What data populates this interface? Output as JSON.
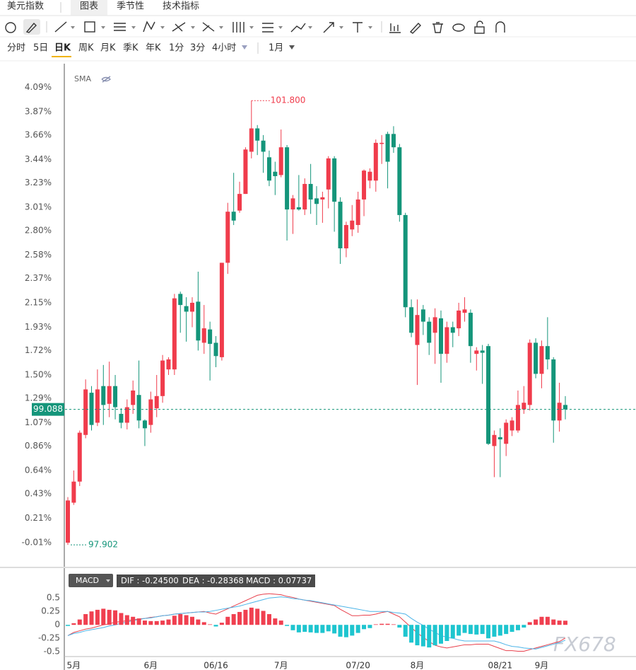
{
  "tabs": {
    "title": "美元指数",
    "items": [
      "图表",
      "季节性",
      "技术指标"
    ]
  },
  "periods": [
    "分时",
    "5日",
    "日K",
    "周K",
    "月K",
    "季K",
    "年K",
    "1分",
    "3分",
    "4小时"
  ],
  "active_period": 2,
  "range": "1月",
  "watermark": "FX678",
  "chart_data": [
    {
      "type": "candlestick",
      "indicator": "SMA",
      "categories": [
        null,
        "5月",
        null,
        null,
        null,
        null,
        null,
        null,
        null,
        null,
        null,
        null,
        null,
        null,
        "6月",
        null,
        null,
        null,
        null,
        null,
        null,
        null,
        null,
        null,
        null,
        "06/16",
        null,
        null,
        null,
        null,
        null,
        null,
        null,
        null,
        null,
        null,
        "7月",
        null,
        null,
        null,
        null,
        null,
        null,
        null,
        null,
        null,
        null,
        null,
        null,
        "07/20",
        null,
        null,
        null,
        null,
        null,
        null,
        null,
        null,
        null,
        "8月",
        null,
        null,
        null,
        null,
        null,
        null,
        null,
        null,
        null,
        null,
        null,
        null,
        null,
        "08/21",
        null,
        null,
        null,
        null,
        null,
        null,
        "9月",
        null,
        null,
        null,
        null
      ],
      "open": [
        -0.01,
        0.35,
        0.54,
        0.96,
        1.34,
        1.07,
        1.4,
        1.24,
        1.4,
        1.15,
        1.07,
        1.23,
        1.32,
        1.09,
        1.05,
        1.2,
        1.31,
        1.55,
        1.55,
        2.23,
        2.12,
        2.07,
        2.16,
        1.79,
        1.91,
        1.79,
        1.66,
        2.51,
        2.97,
        2.98,
        3.13,
        3.51,
        3.72,
        3.61,
        3.46,
        3.33,
        3.3,
        3.55,
        2.99,
        3.01,
        2.99,
        3.22,
        3.09,
        3.08,
        3.17,
        3.45,
        3.06,
        2.64,
        2.81,
        2.85,
        3.08,
        3.25,
        3.25,
        3.58,
        3.67,
        3.67,
        3.55,
        2.94,
        2.11,
        1.77,
        2.09,
        1.98,
        1.88,
        2.01,
        1.69,
        1.93,
        1.92,
        2.06,
        2.06,
        1.69,
        1.72,
        1.76,
        0.86,
        0.94,
        0.88,
        1.0,
        1.0,
        1.19,
        1.23,
        1.79,
        1.51,
        1.76,
        1.64,
        1.09,
        1.23
      ],
      "high": [
        0.4,
        0.64,
        1.0,
        1.46,
        1.4,
        1.55,
        1.59,
        1.62,
        1.5,
        1.2,
        1.28,
        1.45,
        1.63,
        1.1,
        1.35,
        1.5,
        1.68,
        1.66,
        2.23,
        2.25,
        2.2,
        2.2,
        2.43,
        2.13,
        1.98,
        1.85,
        2.51,
        3.05,
        3.32,
        3.24,
        3.55,
        3.97,
        3.75,
        3.66,
        3.52,
        3.42,
        3.71,
        3.57,
        3.12,
        3.3,
        3.27,
        3.4,
        3.2,
        3.15,
        3.47,
        3.47,
        3.1,
        2.88,
        3.03,
        3.15,
        3.35,
        3.36,
        3.62,
        3.66,
        3.69,
        3.74,
        3.58,
        2.96,
        2.18,
        2.18,
        2.13,
        2.02,
        2.1,
        2.08,
        1.98,
        1.98,
        2.15,
        2.2,
        2.09,
        1.75,
        1.77,
        1.78,
        1.0,
        1.02,
        1.1,
        1.12,
        1.36,
        1.4,
        1.82,
        1.83,
        1.81,
        2.02,
        1.66,
        1.43,
        1.31
      ],
      "low": [
        -0.03,
        0.33,
        0.5,
        0.93,
        1.0,
        1.04,
        1.05,
        1.12,
        1.1,
        1.02,
        1.01,
        1.15,
        1.02,
        0.86,
        0.98,
        1.12,
        1.25,
        1.5,
        1.5,
        1.88,
        1.8,
        1.93,
        1.72,
        1.69,
        1.45,
        1.57,
        1.63,
        2.41,
        2.85,
        2.96,
        3.13,
        3.45,
        3.48,
        3.32,
        3.2,
        3.12,
        3.28,
        2.71,
        2.77,
        2.98,
        2.94,
        2.95,
        2.85,
        2.87,
        3.0,
        2.79,
        2.5,
        2.56,
        2.75,
        2.78,
        2.93,
        3.18,
        3.15,
        3.4,
        3.18,
        3.5,
        2.88,
        2.02,
        1.84,
        1.41,
        1.86,
        1.68,
        1.6,
        1.43,
        1.61,
        1.75,
        1.85,
        1.98,
        1.61,
        1.54,
        1.42,
        0.87,
        0.58,
        0.58,
        0.77,
        0.95,
        0.98,
        1.15,
        1.18,
        1.47,
        1.38,
        1.55,
        0.89,
        0.99,
        1.1
      ],
      "close": [
        0.37,
        0.54,
        0.98,
        1.37,
        1.05,
        1.37,
        1.23,
        1.4,
        1.21,
        1.07,
        1.21,
        1.36,
        1.09,
        1.02,
        1.28,
        1.31,
        1.63,
        1.64,
        2.19,
        2.13,
        2.07,
        2.15,
        1.81,
        1.92,
        1.78,
        1.67,
        2.51,
        2.97,
        2.89,
        3.13,
        3.53,
        3.72,
        3.61,
        3.51,
        3.25,
        3.29,
        3.55,
        2.99,
        3.09,
        2.99,
        3.22,
        3.08,
        3.04,
        3.1,
        3.45,
        3.06,
        2.64,
        2.85,
        2.89,
        3.08,
        3.34,
        3.33,
        3.59,
        3.59,
        3.42,
        3.55,
        2.94,
        2.11,
        1.88,
        2.04,
        1.98,
        1.79,
        2.02,
        1.69,
        1.93,
        1.88,
        2.08,
        2.09,
        1.76,
        1.72,
        1.7,
        0.88,
        0.96,
        0.92,
        1.07,
        1.09,
        1.23,
        1.25,
        1.79,
        1.51,
        1.76,
        1.64,
        1.09,
        1.25,
        1.19
      ],
      "up_color": "#f03c4c",
      "down_color": "#14957a",
      "ylim": [
        -0.22,
        4.29
      ],
      "yticks": [
        {
          "value": 4.09,
          "label": "4.09%"
        },
        {
          "value": 3.87,
          "label": "3.87%"
        },
        {
          "value": 3.66,
          "label": "3.66%"
        },
        {
          "value": 3.44,
          "label": "3.44%"
        },
        {
          "value": 3.23,
          "label": "3.23%"
        },
        {
          "value": 3.01,
          "label": "3.01%"
        },
        {
          "value": 2.8,
          "label": "2.80%"
        },
        {
          "value": 2.58,
          "label": "2.58%"
        },
        {
          "value": 2.37,
          "label": "2.37%"
        },
        {
          "value": 2.15,
          "label": "2.15%"
        },
        {
          "value": 1.93,
          "label": "1.93%"
        },
        {
          "value": 1.72,
          "label": "1.72%"
        },
        {
          "value": 1.5,
          "label": "1.50%"
        },
        {
          "value": 1.29,
          "label": "1.29%"
        },
        {
          "value": 1.07,
          "label": "1.07%"
        },
        {
          "value": 0.86,
          "label": "0.86%"
        },
        {
          "value": 0.64,
          "label": "0.64%"
        },
        {
          "value": 0.43,
          "label": "0.43%"
        },
        {
          "value": 0.21,
          "label": "0.21%"
        },
        {
          "value": -0.01,
          "label": "-0.01%"
        }
      ],
      "high_label": {
        "value": 101.8,
        "label": "101.800"
      },
      "low_label": {
        "value": 97.902,
        "label": "97.902"
      },
      "last_price": {
        "value": 99.088,
        "label": "99.088"
      },
      "grid": false
    },
    {
      "type": "macd",
      "indicator": "MACD",
      "readout": [
        "DIF : -0.24500",
        "DEA : -0.28368",
        "MACD : 0.07737"
      ],
      "ylim": [
        -0.55,
        0.7
      ],
      "yticks": [
        0.5,
        0.25,
        0,
        -0.25,
        -0.5
      ],
      "series": [
        {
          "name": "DIF",
          "color": "#e8404c",
          "values": [
            -0.2,
            -0.14,
            -0.11,
            -0.08,
            -0.06,
            -0.03,
            0.0,
            0.02,
            0.05,
            0.06,
            0.08,
            0.09,
            0.11,
            0.12,
            0.14,
            0.15,
            0.17,
            0.18,
            0.2,
            0.21,
            0.22,
            0.23,
            0.24,
            0.25,
            0.22,
            0.2,
            0.25,
            0.3,
            0.35,
            0.4,
            0.45,
            0.5,
            0.55,
            0.57,
            0.58,
            0.57,
            0.56,
            0.53,
            0.51,
            0.48,
            0.46,
            0.44,
            0.42,
            0.4,
            0.38,
            0.36,
            0.29,
            0.23,
            0.17,
            0.17,
            0.18,
            0.18,
            0.2,
            0.23,
            0.25,
            0.2,
            0.15,
            0.05,
            -0.05,
            -0.15,
            -0.23,
            -0.31,
            -0.38,
            -0.41,
            -0.43,
            -0.41,
            -0.39,
            -0.37,
            -0.37,
            -0.36,
            -0.36,
            -0.36,
            -0.4,
            -0.44,
            -0.48,
            -0.48,
            -0.49,
            -0.49,
            -0.46,
            -0.43,
            -0.4,
            -0.37,
            -0.34,
            -0.31,
            -0.245
          ]
        },
        {
          "name": "DEA",
          "color": "#4cb4e8",
          "values": [
            -0.2,
            -0.16,
            -0.14,
            -0.11,
            -0.09,
            -0.07,
            -0.05,
            -0.02,
            0.0,
            0.03,
            0.05,
            0.08,
            0.1,
            0.12,
            0.13,
            0.15,
            0.17,
            0.18,
            0.2,
            0.21,
            0.22,
            0.23,
            0.24,
            0.24,
            0.25,
            0.27,
            0.29,
            0.31,
            0.33,
            0.35,
            0.38,
            0.41,
            0.44,
            0.47,
            0.5,
            0.51,
            0.52,
            0.51,
            0.49,
            0.48,
            0.46,
            0.45,
            0.43,
            0.41,
            0.39,
            0.37,
            0.35,
            0.33,
            0.31,
            0.29,
            0.27,
            0.25,
            0.25,
            0.25,
            0.25,
            0.23,
            0.22,
            0.2,
            0.12,
            0.05,
            -0.01,
            -0.08,
            -0.14,
            -0.2,
            -0.23,
            -0.25,
            -0.28,
            -0.3,
            -0.3,
            -0.3,
            -0.3,
            -0.3,
            -0.3,
            -0.33,
            -0.37,
            -0.4,
            -0.41,
            -0.43,
            -0.44,
            -0.45,
            -0.42,
            -0.39,
            -0.36,
            -0.33,
            -0.284
          ]
        },
        {
          "name": "MACD",
          "color": "#f04050",
          "negative_color": "#1ec5cf",
          "values": [
            -0.02,
            0.03,
            0.1,
            0.2,
            0.25,
            0.28,
            0.3,
            0.28,
            0.27,
            0.22,
            0.18,
            0.15,
            0.12,
            0.08,
            0.07,
            0.07,
            0.08,
            0.1,
            0.17,
            0.2,
            0.18,
            0.15,
            0.1,
            0.05,
            0.01,
            -0.03,
            0.04,
            0.15,
            0.2,
            0.24,
            0.28,
            0.32,
            0.3,
            0.26,
            0.2,
            0.12,
            0.08,
            -0.02,
            -0.1,
            -0.14,
            -0.13,
            -0.14,
            -0.15,
            -0.15,
            -0.12,
            -0.16,
            -0.22,
            -0.23,
            -0.2,
            -0.15,
            -0.08,
            -0.06,
            0.01,
            0.02,
            0.02,
            0.01,
            -0.05,
            -0.22,
            -0.33,
            -0.38,
            -0.4,
            -0.42,
            -0.38,
            -0.35,
            -0.3,
            -0.25,
            -0.2,
            -0.15,
            -0.17,
            -0.18,
            -0.17,
            -0.25,
            -0.22,
            -0.2,
            -0.17,
            -0.13,
            -0.1,
            -0.05,
            0.05,
            0.1,
            0.15,
            0.15,
            0.1,
            0.08,
            0.07737
          ]
        }
      ]
    }
  ]
}
